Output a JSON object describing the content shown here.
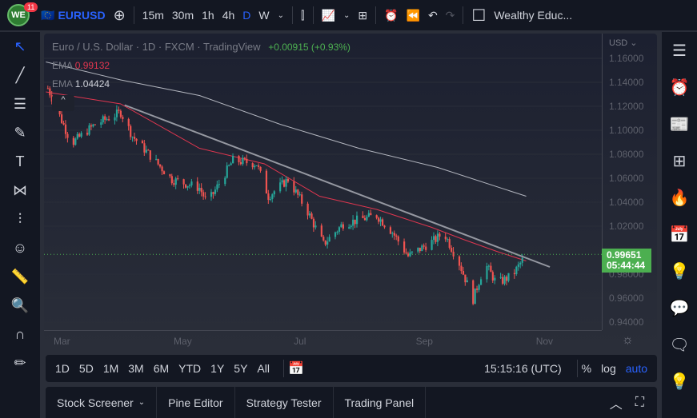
{
  "top": {
    "notif_count": "11",
    "symbol": "EURUSD",
    "intervals": [
      "15m",
      "30m",
      "1h",
      "4h",
      "D",
      "W"
    ],
    "active_interval": "D",
    "account": "Wealthy Educ..."
  },
  "legend": {
    "title": "Euro / U.S. Dollar · 1D · FXCM · TradingView",
    "change": "+0.00915 (+0.93%)",
    "ema1_label": "EMA",
    "ema1_value": "0.99132",
    "ema2_label": "EMA",
    "ema2_value": "1.04424"
  },
  "price_axis": {
    "currency": "USD",
    "ticks": [
      "1.16000",
      "1.14000",
      "1.12000",
      "1.10000",
      "1.08000",
      "1.06000",
      "1.04000",
      "1.02000",
      "0.98000",
      "0.96000",
      "0.94000"
    ],
    "last_price": "0.99651",
    "countdown": "05:44:44"
  },
  "time_axis": [
    "Mar",
    "May",
    "Jul",
    "Sep",
    "Nov"
  ],
  "ranges": [
    "1D",
    "5D",
    "1M",
    "3M",
    "6M",
    "YTD",
    "1Y",
    "5Y",
    "All"
  ],
  "clock": "15:15:16 (UTC)",
  "scale_opts": {
    "pct": "%",
    "log": "log",
    "auto": "auto"
  },
  "panel_tabs": [
    "Stock Screener",
    "Pine Editor",
    "Strategy Tester",
    "Trading Panel"
  ],
  "colors": {
    "up": "#26a69a",
    "down": "#ef5350",
    "ema_fast": "#e0364f",
    "ema_slow": "#b2b5be",
    "accent": "#2962ff",
    "last": "#4caf50"
  },
  "chart_data": {
    "type": "candlestick",
    "ylim": [
      0.93,
      1.17
    ],
    "price_path": [
      [
        "2022-02-22",
        1.135
      ],
      [
        "2022-03-06",
        1.089
      ],
      [
        "2022-03-18",
        1.105
      ],
      [
        "2022-03-31",
        1.115
      ],
      [
        "2022-04-06",
        1.095
      ],
      [
        "2022-04-26",
        1.059
      ],
      [
        "2022-05-10",
        1.052
      ],
      [
        "2022-05-14",
        1.039
      ],
      [
        "2022-05-27",
        1.075
      ],
      [
        "2022-06-08",
        1.072
      ],
      [
        "2022-06-14",
        1.045
      ],
      [
        "2022-06-24",
        1.059
      ],
      [
        "2022-07-04",
        1.032
      ],
      [
        "2022-07-12",
        1.005
      ],
      [
        "2022-07-22",
        1.022
      ],
      [
        "2022-08-08",
        1.029
      ],
      [
        "2022-08-16",
        1.015
      ],
      [
        "2022-08-24",
        0.995
      ],
      [
        "2022-09-07",
        1.009
      ],
      [
        "2022-09-11",
        1.015
      ],
      [
        "2022-09-19",
        0.989
      ],
      [
        "2022-09-26",
        0.959
      ],
      [
        "2022-10-02",
        0.989
      ],
      [
        "2022-10-08",
        0.972
      ],
      [
        "2022-10-16",
        0.979
      ],
      [
        "2022-10-23",
        0.9965
      ]
    ],
    "ema_fast": [
      [
        "2022-02-21",
        1.132
      ],
      [
        "2022-03-31",
        1.122
      ],
      [
        "2022-05-10",
        1.085
      ],
      [
        "2022-06-12",
        1.072
      ],
      [
        "2022-07-10",
        1.045
      ],
      [
        "2022-08-08",
        1.034
      ],
      [
        "2022-09-05",
        1.019
      ],
      [
        "2022-09-21",
        1.009
      ],
      [
        "2022-10-08",
        0.999
      ],
      [
        "2022-10-23",
        0.991
      ]
    ],
    "ema_slow": [
      [
        "2022-02-21",
        1.157
      ],
      [
        "2022-03-31",
        1.142
      ],
      [
        "2022-05-10",
        1.129
      ],
      [
        "2022-06-20",
        1.105
      ],
      [
        "2022-07-30",
        1.085
      ],
      [
        "2022-09-08",
        1.069
      ],
      [
        "2022-10-23",
        1.045
      ]
    ],
    "trendline": [
      [
        "2022-04-02",
        1.121
      ],
      [
        "2022-11-04",
        0.986
      ]
    ]
  }
}
